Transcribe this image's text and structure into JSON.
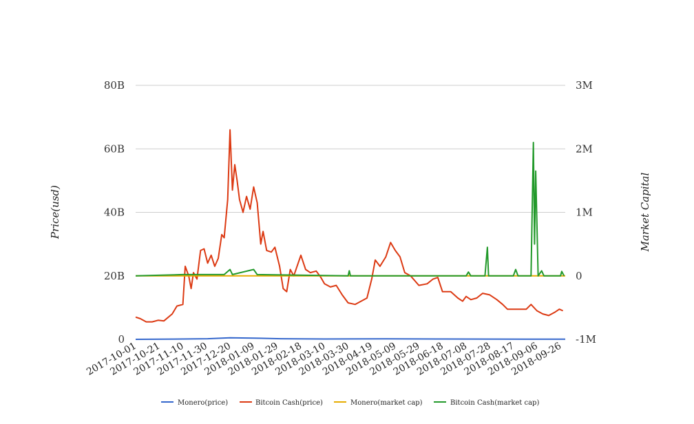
{
  "chart_data": {
    "type": "line",
    "title": "",
    "ylabel": "Price(usd)",
    "y2label": "Market Capital",
    "ylim": [
      0,
      80000000000
    ],
    "y2lim": [
      -1000000,
      3000000
    ],
    "yticks": [
      "0",
      "20B",
      "40B",
      "60B",
      "80B"
    ],
    "yticks_values": [
      0,
      20000000000,
      40000000000,
      60000000000,
      80000000000
    ],
    "y2ticks": [
      "-1M",
      "0",
      "1M",
      "2M",
      "3M"
    ],
    "y2ticks_values": [
      -1000000,
      0,
      1000000,
      2000000,
      3000000
    ],
    "xlim": [
      "2017-10-01",
      "2018-09-30"
    ],
    "xticks": [
      "2017-10-01",
      "2017-10-21",
      "2017-11-10",
      "2017-11-30",
      "2017-12-20",
      "2018-01-09",
      "2018-01-29",
      "2018-02-18",
      "2018-03-10",
      "2018-03-30",
      "2018-04-19",
      "2018-05-09",
      "2018-05-29",
      "2018-06-18",
      "2018-07-08",
      "2018-07-28",
      "2018-08-17",
      "2018-09-06",
      "2018-09-26"
    ],
    "grid": true,
    "legend_position": "bottom",
    "series": [
      {
        "name": "Monero(price)",
        "axis": "left",
        "color": "#3366cc",
        "points": [
          [
            "2017-10-01",
            0
          ],
          [
            "2017-11-10",
            100000000
          ],
          [
            "2017-12-01",
            200000000
          ],
          [
            "2017-12-20",
            500000000
          ],
          [
            "2018-01-09",
            400000000
          ],
          [
            "2018-02-01",
            200000000
          ],
          [
            "2018-03-10",
            100000000
          ],
          [
            "2018-05-01",
            150000000
          ],
          [
            "2018-06-18",
            100000000
          ],
          [
            "2018-09-30",
            50000000
          ]
        ]
      },
      {
        "name": "Bitcoin Cash(price)",
        "axis": "left",
        "color": "#dc3912",
        "points": [
          [
            "2017-10-01",
            7000000000
          ],
          [
            "2017-10-05",
            6500000000
          ],
          [
            "2017-10-10",
            5500000000
          ],
          [
            "2017-10-15",
            5500000000
          ],
          [
            "2017-10-20",
            6000000000
          ],
          [
            "2017-10-25",
            5800000000
          ],
          [
            "2017-11-01",
            8000000000
          ],
          [
            "2017-11-05",
            10500000000
          ],
          [
            "2017-11-10",
            11000000000
          ],
          [
            "2017-11-12",
            23000000000
          ],
          [
            "2017-11-15",
            20000000000
          ],
          [
            "2017-11-17",
            16000000000
          ],
          [
            "2017-11-19",
            21000000000
          ],
          [
            "2017-11-22",
            19000000000
          ],
          [
            "2017-11-25",
            28000000000
          ],
          [
            "2017-11-28",
            28500000000
          ],
          [
            "2017-12-01",
            24000000000
          ],
          [
            "2017-12-04",
            26500000000
          ],
          [
            "2017-12-07",
            23000000000
          ],
          [
            "2017-12-10",
            25500000000
          ],
          [
            "2017-12-13",
            33000000000
          ],
          [
            "2017-12-15",
            32000000000
          ],
          [
            "2017-12-18",
            44000000000
          ],
          [
            "2017-12-20",
            66000000000
          ],
          [
            "2017-12-22",
            47000000000
          ],
          [
            "2017-12-24",
            55000000000
          ],
          [
            "2017-12-26",
            50000000000
          ],
          [
            "2017-12-28",
            44000000000
          ],
          [
            "2017-12-31",
            40000000000
          ],
          [
            "2018-01-03",
            45000000000
          ],
          [
            "2018-01-06",
            41000000000
          ],
          [
            "2018-01-09",
            48000000000
          ],
          [
            "2018-01-12",
            43000000000
          ],
          [
            "2018-01-15",
            30000000000
          ],
          [
            "2018-01-17",
            34000000000
          ],
          [
            "2018-01-20",
            28000000000
          ],
          [
            "2018-01-24",
            27500000000
          ],
          [
            "2018-01-27",
            29000000000
          ],
          [
            "2018-01-31",
            23000000000
          ],
          [
            "2018-02-03",
            16000000000
          ],
          [
            "2018-02-06",
            15000000000
          ],
          [
            "2018-02-09",
            22000000000
          ],
          [
            "2018-02-12",
            20000000000
          ],
          [
            "2018-02-18",
            26500000000
          ],
          [
            "2018-02-22",
            22000000000
          ],
          [
            "2018-02-26",
            21000000000
          ],
          [
            "2018-03-03",
            21500000000
          ],
          [
            "2018-03-07",
            19500000000
          ],
          [
            "2018-03-10",
            17500000000
          ],
          [
            "2018-03-15",
            16500000000
          ],
          [
            "2018-03-20",
            17000000000
          ],
          [
            "2018-03-25",
            14000000000
          ],
          [
            "2018-03-30",
            11500000000
          ],
          [
            "2018-04-05",
            11000000000
          ],
          [
            "2018-04-10",
            12000000000
          ],
          [
            "2018-04-15",
            13000000000
          ],
          [
            "2018-04-19",
            19000000000
          ],
          [
            "2018-04-22",
            25000000000
          ],
          [
            "2018-04-26",
            23000000000
          ],
          [
            "2018-05-01",
            26000000000
          ],
          [
            "2018-05-05",
            30500000000
          ],
          [
            "2018-05-09",
            28000000000
          ],
          [
            "2018-05-13",
            26000000000
          ],
          [
            "2018-05-17",
            21000000000
          ],
          [
            "2018-05-22",
            20000000000
          ],
          [
            "2018-05-29",
            17000000000
          ],
          [
            "2018-06-05",
            17500000000
          ],
          [
            "2018-06-10",
            19000000000
          ],
          [
            "2018-06-14",
            19500000000
          ],
          [
            "2018-06-18",
            15000000000
          ],
          [
            "2018-06-25",
            15000000000
          ],
          [
            "2018-07-01",
            13000000000
          ],
          [
            "2018-07-05",
            12000000000
          ],
          [
            "2018-07-08",
            13500000000
          ],
          [
            "2018-07-12",
            12500000000
          ],
          [
            "2018-07-17",
            13000000000
          ],
          [
            "2018-07-22",
            14500000000
          ],
          [
            "2018-07-28",
            14000000000
          ],
          [
            "2018-08-03",
            12500000000
          ],
          [
            "2018-08-08",
            11000000000
          ],
          [
            "2018-08-12",
            9500000000
          ],
          [
            "2018-08-17",
            9500000000
          ],
          [
            "2018-08-22",
            9500000000
          ],
          [
            "2018-08-28",
            9500000000
          ],
          [
            "2018-09-01",
            11000000000
          ],
          [
            "2018-09-06",
            9000000000
          ],
          [
            "2018-09-11",
            8000000000
          ],
          [
            "2018-09-16",
            7500000000
          ],
          [
            "2018-09-21",
            8500000000
          ],
          [
            "2018-09-25",
            9500000000
          ],
          [
            "2018-09-28",
            9000000000
          ]
        ]
      },
      {
        "name": "Monero(market cap)",
        "axis": "right",
        "color": "#e6ac00",
        "points": [
          [
            "2017-10-01",
            0
          ],
          [
            "2018-09-30",
            0
          ]
        ]
      },
      {
        "name": "Bitcoin Cash(market cap)",
        "axis": "right",
        "color": "#22992a",
        "points": [
          [
            "2017-10-01",
            0
          ],
          [
            "2017-11-10",
            20000
          ],
          [
            "2017-12-15",
            20000
          ],
          [
            "2017-12-20",
            100000
          ],
          [
            "2017-12-22",
            20000
          ],
          [
            "2018-01-09",
            100000
          ],
          [
            "2018-01-12",
            20000
          ],
          [
            "2018-03-30",
            0
          ],
          [
            "2018-03-31",
            80000
          ],
          [
            "2018-04-01",
            0
          ],
          [
            "2018-07-08",
            0
          ],
          [
            "2018-07-10",
            60000
          ],
          [
            "2018-07-12",
            0
          ],
          [
            "2018-07-24",
            0
          ],
          [
            "2018-07-26",
            450000
          ],
          [
            "2018-07-27",
            0
          ],
          [
            "2018-08-17",
            0
          ],
          [
            "2018-08-19",
            100000
          ],
          [
            "2018-08-21",
            0
          ],
          [
            "2018-09-01",
            0
          ],
          [
            "2018-09-03",
            2100000
          ],
          [
            "2018-09-04",
            500000
          ],
          [
            "2018-09-05",
            1650000
          ],
          [
            "2018-09-07",
            0
          ],
          [
            "2018-09-10",
            80000
          ],
          [
            "2018-09-12",
            0
          ],
          [
            "2018-09-26",
            0
          ],
          [
            "2018-09-27",
            70000
          ],
          [
            "2018-09-29",
            0
          ]
        ]
      }
    ]
  }
}
